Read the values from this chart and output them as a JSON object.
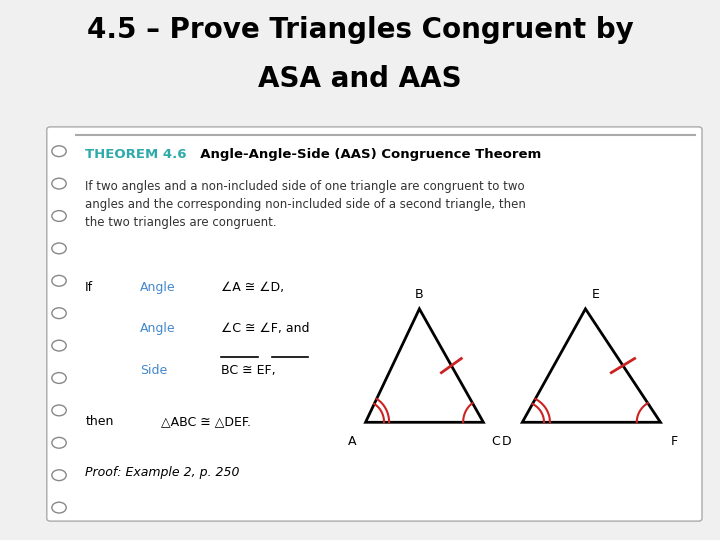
{
  "title_line1": "4.5 – Prove Triangles Congruent by",
  "title_line2": "ASA and AAS",
  "bg_color": "#f0f0f0",
  "card_bg": "#ffffff",
  "theorem_label": "THEOREM 4.6",
  "theorem_label_color": "#2eaaaa",
  "theorem_title": "  Angle-Angle-Side (AAS) Congruence Theorem",
  "body_text": "If two angles and a non-included side of one triangle are congruent to two\nangles and the corresponding non-included side of a second triangle, then\nthe two triangles are congruent.",
  "if_text": "If",
  "angle_color": "#4488cc",
  "side_color": "#4488cc",
  "line1_label": "Angle",
  "line1_eq": "∠A ≅ ∠D,",
  "line2_label": "Angle",
  "line2_eq": "∠C ≅ ∠F, and",
  "line3_label": "Side",
  "line3_eq": "BC ≅ EF,",
  "then_text": "then",
  "then_eq": "△ABC ≅ △DEF.",
  "proof_text": "Proof: Example 2, p. 250",
  "tri_color": "#111111",
  "mark_color": "#cc2222"
}
